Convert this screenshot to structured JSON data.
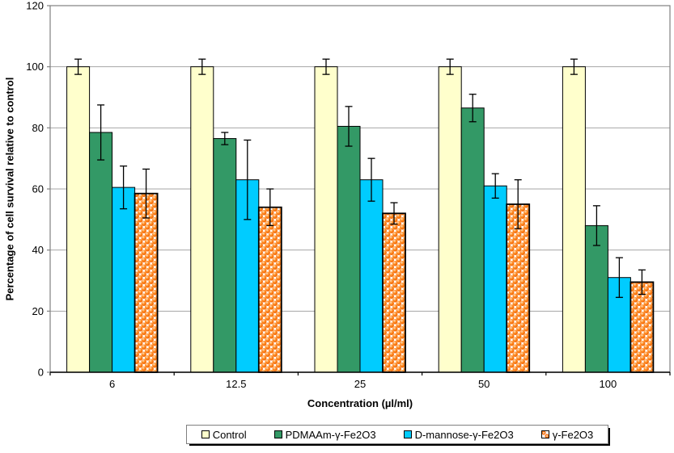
{
  "chart_data": {
    "type": "bar",
    "title": "",
    "xlabel": "Concentration (µl/ml)",
    "ylabel": "Percentage of cell survival relative to control",
    "categories": [
      "6",
      "12.5",
      "25",
      "50",
      "100"
    ],
    "yticks": [
      0,
      20,
      40,
      60,
      80,
      100,
      120
    ],
    "ylim": [
      0,
      120
    ],
    "ytick_step": 20,
    "grid": true,
    "legend_position": "bottom",
    "series": [
      {
        "name": "Control",
        "color": "#FFFFCC",
        "pattern": "solid",
        "values": [
          100,
          100,
          100,
          100,
          100
        ],
        "errors": [
          2.5,
          2.5,
          2.5,
          2.5,
          2.5
        ]
      },
      {
        "name": "PDMAAm-γ-Fe2O3",
        "color": "#339966",
        "pattern": "solid",
        "values": [
          78.5,
          76.5,
          80.5,
          86.5,
          48
        ],
        "errors": [
          9,
          2,
          6.5,
          4.5,
          6.5
        ]
      },
      {
        "name": "D-mannose-γ-Fe2O3",
        "color": "#00CCFF",
        "pattern": "solid",
        "values": [
          60.5,
          63,
          63,
          61,
          31
        ],
        "errors": [
          7,
          13,
          7,
          4,
          6.5
        ]
      },
      {
        "name": "γ-Fe2O3",
        "color": "#FF6600",
        "pattern": "spheres",
        "values": [
          58.5,
          54,
          52,
          55,
          29.5
        ],
        "errors": [
          8,
          6,
          3.5,
          8,
          4
        ]
      }
    ]
  }
}
